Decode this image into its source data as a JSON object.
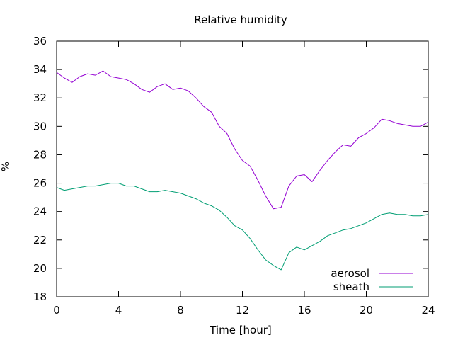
{
  "chart_data": {
    "type": "line",
    "title": "Relative humidity",
    "xlabel": "Time [hour]",
    "ylabel": "%",
    "xlim": [
      0,
      24
    ],
    "ylim": [
      18,
      36
    ],
    "xticks": [
      0,
      4,
      8,
      12,
      16,
      20,
      24
    ],
    "yticks": [
      18,
      20,
      22,
      24,
      26,
      28,
      30,
      32,
      34,
      36
    ],
    "grid": false,
    "legend_position": "bottom-right",
    "series": [
      {
        "name": "aerosol",
        "color": "#9400d3",
        "x": [
          0,
          0.5,
          1,
          1.5,
          2,
          2.5,
          3,
          3.5,
          4,
          4.5,
          5,
          5.5,
          6,
          6.5,
          7,
          7.5,
          8,
          8.5,
          9,
          9.5,
          10,
          10.5,
          11,
          11.5,
          12,
          12.5,
          13,
          13.5,
          14,
          14.5,
          15,
          15.5,
          16,
          16.5,
          17,
          17.5,
          18,
          18.5,
          19,
          19.5,
          20,
          20.5,
          21,
          21.5,
          22,
          22.5,
          23,
          23.5,
          24
        ],
        "y": [
          33.8,
          33.4,
          33.1,
          33.5,
          33.7,
          33.6,
          33.9,
          33.5,
          33.4,
          33.3,
          33.0,
          32.6,
          32.4,
          32.8,
          33.0,
          32.6,
          32.7,
          32.5,
          32.0,
          31.4,
          31.0,
          30.0,
          29.5,
          28.4,
          27.6,
          27.2,
          26.2,
          25.1,
          24.2,
          24.3,
          25.8,
          26.5,
          26.6,
          26.1,
          26.9,
          27.6,
          28.2,
          28.7,
          28.6,
          29.2,
          29.5,
          29.9,
          30.5,
          30.4,
          30.2,
          30.1,
          30.0,
          30.0,
          30.3
        ]
      },
      {
        "name": "sheath",
        "color": "#009e73",
        "x": [
          0,
          0.5,
          1,
          1.5,
          2,
          2.5,
          3,
          3.5,
          4,
          4.5,
          5,
          5.5,
          6,
          6.5,
          7,
          7.5,
          8,
          8.5,
          9,
          9.5,
          10,
          10.5,
          11,
          11.5,
          12,
          12.5,
          13,
          13.5,
          14,
          14.5,
          15,
          15.5,
          16,
          16.5,
          17,
          17.5,
          18,
          18.5,
          19,
          19.5,
          20,
          20.5,
          21,
          21.5,
          22,
          22.5,
          23,
          23.5,
          24
        ],
        "y": [
          25.7,
          25.5,
          25.6,
          25.7,
          25.8,
          25.8,
          25.9,
          26.0,
          26.0,
          25.8,
          25.8,
          25.6,
          25.4,
          25.4,
          25.5,
          25.4,
          25.3,
          25.1,
          24.9,
          24.6,
          24.4,
          24.1,
          23.6,
          23.0,
          22.7,
          22.1,
          21.3,
          20.6,
          20.2,
          19.9,
          21.1,
          21.5,
          21.3,
          21.6,
          21.9,
          22.3,
          22.5,
          22.7,
          22.8,
          23.0,
          23.2,
          23.5,
          23.8,
          23.9,
          23.8,
          23.8,
          23.7,
          23.7,
          23.8
        ]
      }
    ]
  }
}
